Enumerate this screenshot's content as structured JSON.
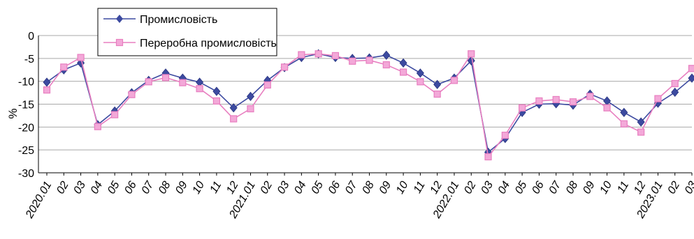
{
  "chart_data": {
    "type": "line",
    "title": "",
    "xlabel": "",
    "ylabel": "%",
    "ylim": [
      -30,
      0
    ],
    "yticks": [
      0,
      -5,
      -10,
      -15,
      -20,
      -25,
      -30
    ],
    "grid": true,
    "legend_position": "top-left",
    "categories": [
      "2020.01",
      "02",
      "03",
      "04",
      "05",
      "06",
      "07",
      "08",
      "09",
      "10",
      "11",
      "12",
      "2021.01",
      "02",
      "03",
      "04",
      "05",
      "06",
      "07",
      "08",
      "09",
      "10",
      "11",
      "12",
      "2022.01",
      "02",
      "03",
      "04",
      "05",
      "06",
      "07",
      "08",
      "09",
      "10",
      "11",
      "12",
      "2023.01",
      "02",
      "03"
    ],
    "series": [
      {
        "name": "Промисловість",
        "color": "#3c4aa0",
        "marker": "diamond",
        "values": [
          -10.2,
          -7.5,
          -6.0,
          -19.5,
          -16.5,
          -12.5,
          -9.8,
          -8.2,
          -9.3,
          -10.2,
          -12.2,
          -15.8,
          -13.3,
          -9.8,
          -7.0,
          -4.8,
          -4.0,
          -4.8,
          -5.0,
          -4.9,
          -4.3,
          -6.0,
          -8.2,
          -10.7,
          -9.3,
          -5.5,
          -25.5,
          -22.5,
          -16.8,
          -15.0,
          -14.9,
          -15.2,
          -12.8,
          -14.3,
          -16.8,
          -18.9,
          -14.8,
          -12.4,
          -9.3
        ]
      },
      {
        "name": "Переробна промисловість",
        "color": "#e87fc0",
        "marker": "square",
        "values": [
          -11.9,
          -6.9,
          -4.8,
          -19.9,
          -17.3,
          -12.9,
          -10.1,
          -9.2,
          -10.3,
          -11.6,
          -14.3,
          -18.2,
          -16.0,
          -10.8,
          -6.9,
          -4.2,
          -4.0,
          -4.4,
          -5.6,
          -5.4,
          -6.4,
          -8.0,
          -10.1,
          -12.8,
          -9.8,
          -4.0,
          -26.5,
          -21.8,
          -15.8,
          -14.3,
          -14.0,
          -14.5,
          -13.3,
          -15.8,
          -19.3,
          -21.1,
          -13.8,
          -10.5,
          -7.2
        ]
      }
    ]
  }
}
